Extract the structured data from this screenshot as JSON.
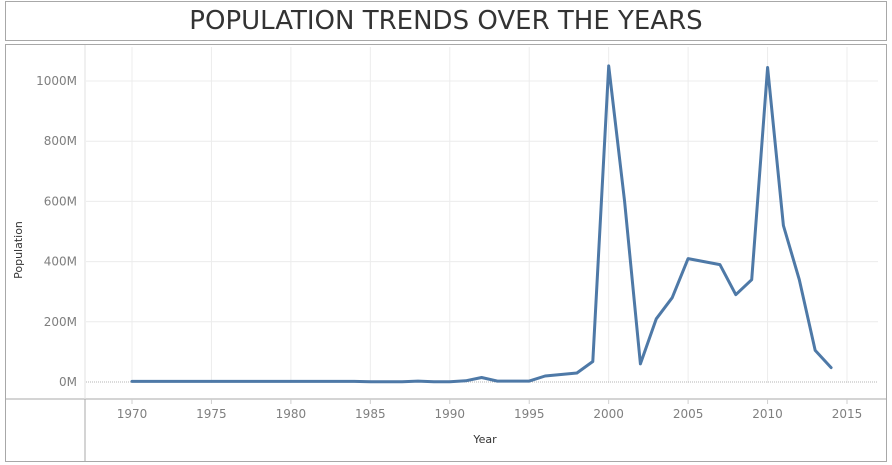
{
  "page": {
    "title": "POPULATION TRENDS OVER THE YEARS"
  },
  "colors": {
    "line": "#4e79a7",
    "grid": "#ececec",
    "border": "#a8a8a8",
    "zero_line": "#b5b5b5"
  },
  "chart_data": {
    "type": "line",
    "title": "POPULATION TRENDS OVER THE YEARS",
    "xlabel": "Year",
    "ylabel": "Population",
    "xlim": [
      1966,
      2017
    ],
    "ylim": [
      0,
      1000
    ],
    "y_unit": "M",
    "x_ticks": [
      1970,
      1975,
      1980,
      1985,
      1990,
      1995,
      2000,
      2005,
      2010,
      2015
    ],
    "y_ticks": [
      0,
      200,
      400,
      600,
      800,
      1000
    ],
    "y_tick_labels": [
      "0M",
      "200M",
      "400M",
      "600M",
      "800M",
      "1000M"
    ],
    "grid": true,
    "series": [
      {
        "x": [
          1970,
          1971,
          1972,
          1973,
          1974,
          1975,
          1976,
          1977,
          1978,
          1979,
          1980,
          1981,
          1982,
          1983,
          1984,
          1985,
          1986,
          1987,
          1988,
          1989,
          1990,
          1991,
          1992,
          1993,
          1994,
          1995,
          1996,
          1997,
          1998,
          1999,
          2000,
          2001,
          2002,
          2003,
          2004,
          2005,
          2006,
          2007,
          2008,
          2009,
          2010,
          2011,
          2012,
          2013,
          2014
        ],
        "y": [
          2,
          2,
          2,
          2,
          2,
          2,
          2,
          2,
          2,
          2,
          2,
          2,
          2,
          2,
          2,
          1,
          1,
          1,
          3,
          1,
          1,
          4,
          15,
          3,
          3,
          3,
          20,
          25,
          30,
          68,
          1050,
          600,
          60,
          210,
          280,
          410,
          400,
          390,
          290,
          340,
          1045,
          520,
          340,
          105,
          48
        ]
      }
    ]
  }
}
